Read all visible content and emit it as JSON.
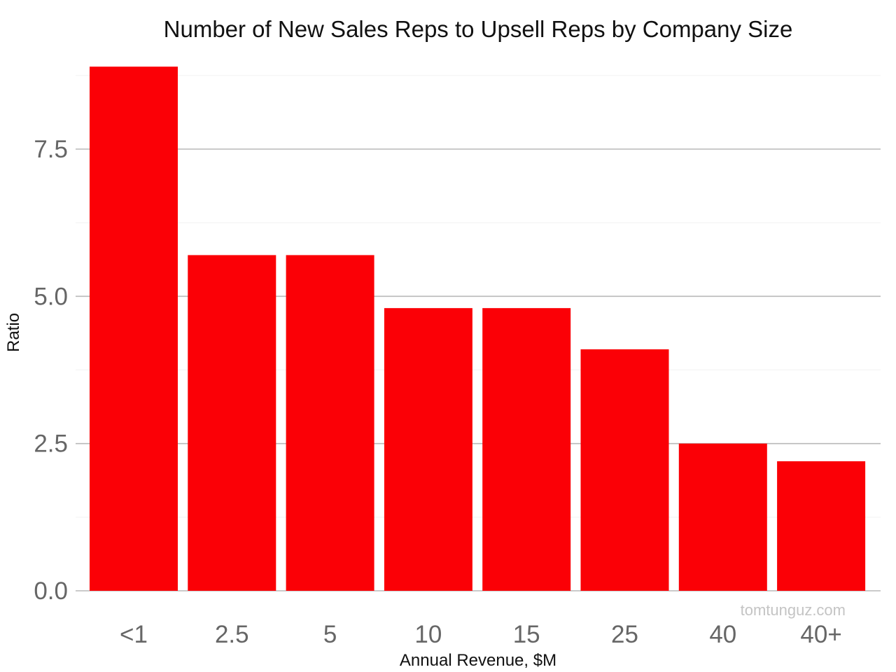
{
  "chart_data": {
    "type": "bar",
    "title": "Number of New Sales Reps to Upsell Reps by Company Size",
    "xlabel": "Annual Revenue, $M",
    "ylabel": "Ratio",
    "categories": [
      "<1",
      "2.5",
      "5",
      "10",
      "15",
      "25",
      "40",
      "40+"
    ],
    "values": [
      8.9,
      5.7,
      5.7,
      4.8,
      4.8,
      4.1,
      2.5,
      2.2
    ],
    "ylim": [
      0,
      9.1
    ],
    "yticks": [
      0,
      2.5,
      5,
      7.5
    ],
    "ytick_labels": [
      "0.0",
      "2.5",
      "5.0",
      "7.5"
    ],
    "grid": true,
    "bar_color": "#fb0006",
    "watermark": "tomtunguz.com"
  }
}
